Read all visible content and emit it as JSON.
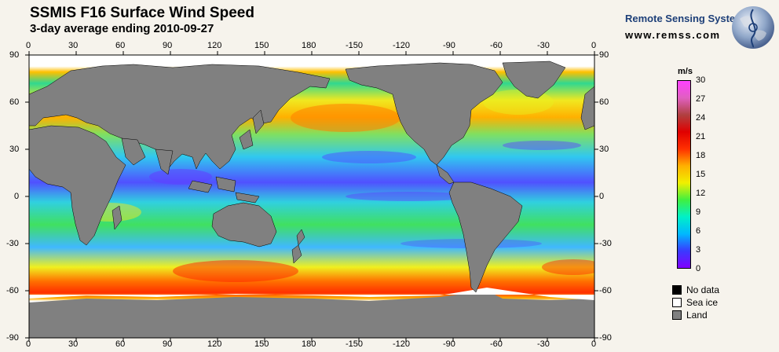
{
  "header": {
    "title": "SSMIS F16 Surface Wind Speed",
    "subtitle": "3-day average ending 2010-09-27"
  },
  "brand": {
    "name": "Remote Sensing Systems",
    "url": "www.remss.com"
  },
  "axes": {
    "lon_labels": [
      "0",
      "30",
      "60",
      "90",
      "120",
      "150",
      "180",
      "-150",
      "-120",
      "-90",
      "-60",
      "-30",
      "0"
    ],
    "lat_labels": [
      "90",
      "60",
      "30",
      "0",
      "-30",
      "-60",
      "-90"
    ]
  },
  "colorbar": {
    "unit": "m/s",
    "ticks": [
      "30",
      "27",
      "24",
      "21",
      "18",
      "15",
      "12",
      "9",
      "6",
      "3",
      "0"
    ],
    "range": [
      0,
      30
    ],
    "stops": [
      "#8000ff",
      "#3a3aff",
      "#00b8ff",
      "#00f0c8",
      "#40f040",
      "#f0f000",
      "#ffb000",
      "#ff3000",
      "#e00000",
      "#b04040",
      "#e060c0",
      "#ff40ff"
    ]
  },
  "legend": {
    "items": [
      {
        "label": "No data",
        "color": "#000000"
      },
      {
        "label": "Sea ice",
        "color": "#ffffff"
      },
      {
        "label": "Land",
        "color": "#808080"
      }
    ]
  },
  "colors": {
    "land": "#808080",
    "background": "#f6f3ec",
    "brand": "#1d3f78"
  }
}
